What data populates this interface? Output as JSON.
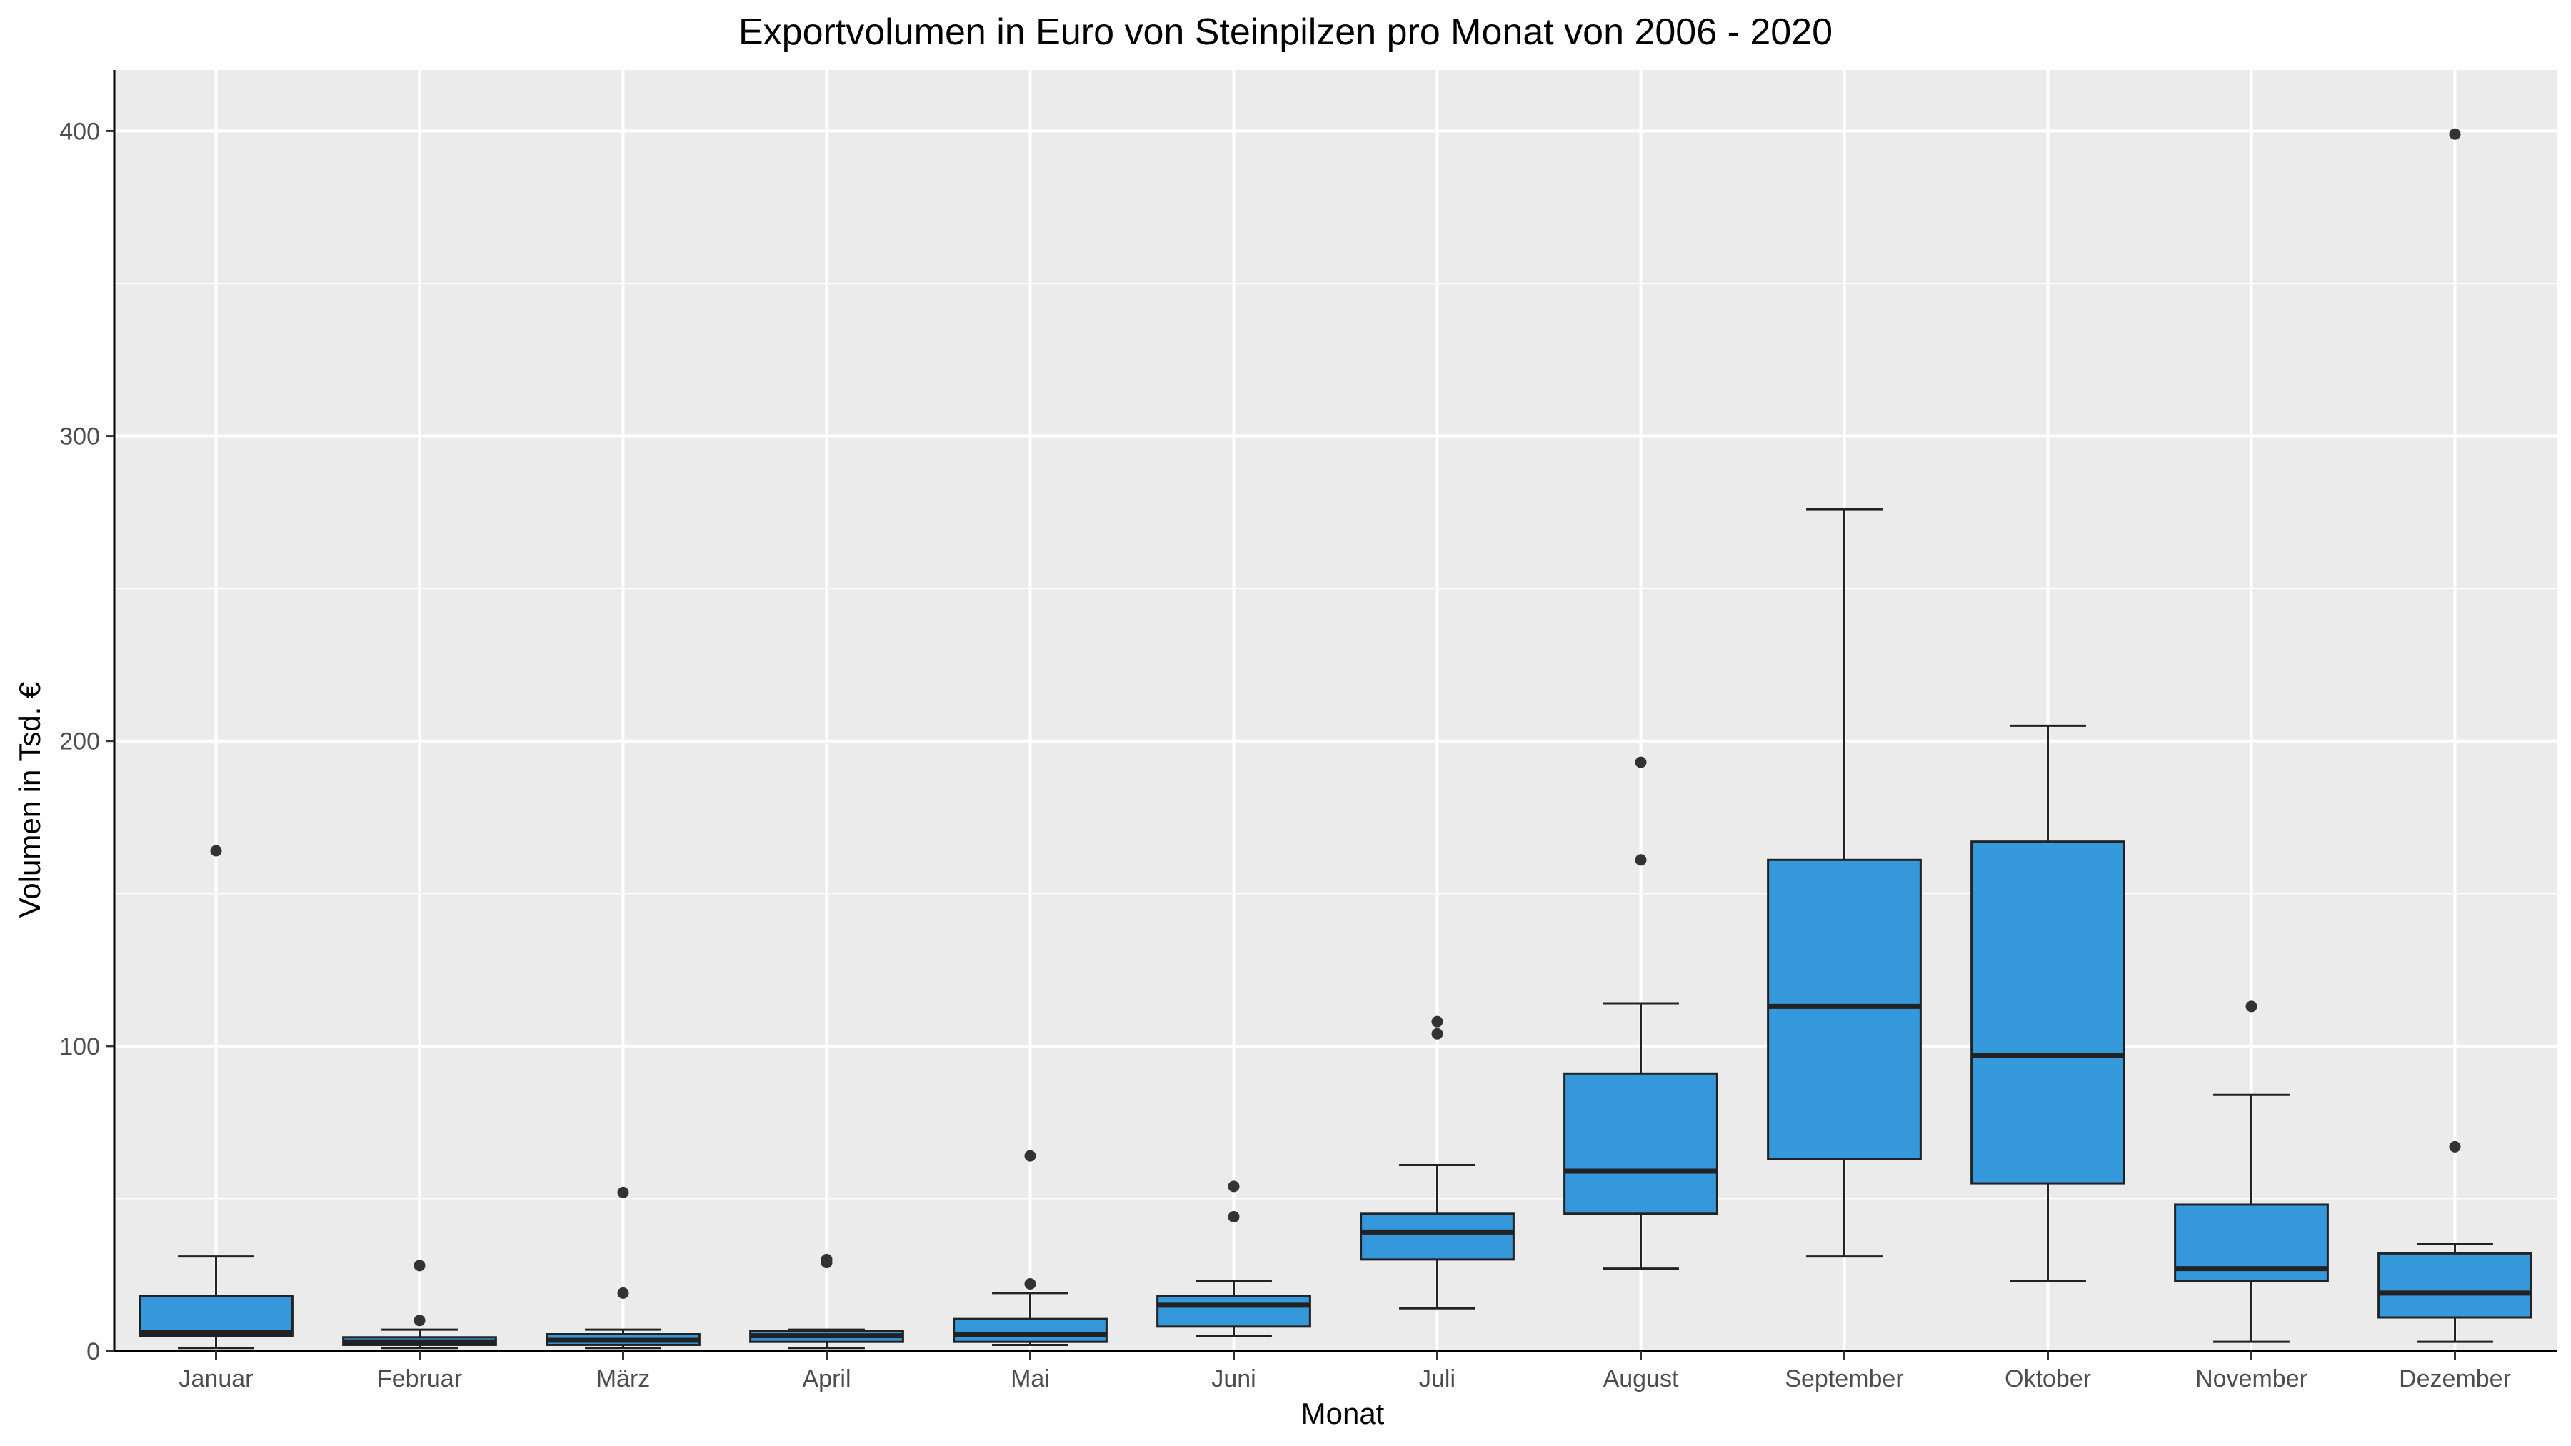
{
  "chart_data": {
    "type": "boxplot",
    "title": "Exportvolumen in Euro von Steinpilzen pro Monat von 2006 - 2020",
    "xlabel": "Monat",
    "ylabel": "Volumen in Tsd. €",
    "ylim": [
      0,
      420
    ],
    "yticks": [
      0,
      100,
      200,
      300,
      400
    ],
    "yticks_labels": [
      "0",
      "100",
      "200",
      "300",
      "400"
    ],
    "grid": true,
    "legend": "none",
    "colors": {
      "box_fill": "#3498DB",
      "box_stroke": "#222222",
      "panel_bg": "#EBEBEB",
      "grid_major": "#FFFFFF",
      "outlier": "#333333"
    },
    "categories": [
      "Januar",
      "Februar",
      "März",
      "April",
      "Mai",
      "Juni",
      "Juli",
      "August",
      "September",
      "Oktober",
      "November",
      "Dezember"
    ],
    "boxes": [
      {
        "category": "Januar",
        "whisker_low": 1,
        "q1": 5,
        "median": 6,
        "q3": 18,
        "whisker_high": 31,
        "outliers": [
          164
        ]
      },
      {
        "category": "Februar",
        "whisker_low": 1,
        "q1": 2,
        "median": 3,
        "q3": 4.5,
        "whisker_high": 7,
        "outliers": [
          10,
          28
        ]
      },
      {
        "category": "März",
        "whisker_low": 1,
        "q1": 2,
        "median": 3.5,
        "q3": 5.5,
        "whisker_high": 7,
        "outliers": [
          19,
          52
        ]
      },
      {
        "category": "April",
        "whisker_low": 1,
        "q1": 3,
        "median": 5,
        "q3": 6.5,
        "whisker_high": 7,
        "outliers": [
          29,
          30
        ]
      },
      {
        "category": "Mai",
        "whisker_low": 2,
        "q1": 3,
        "median": 5.5,
        "q3": 10.5,
        "whisker_high": 19,
        "outliers": [
          22,
          64
        ]
      },
      {
        "category": "Juni",
        "whisker_low": 5,
        "q1": 8,
        "median": 15,
        "q3": 18,
        "whisker_high": 23,
        "outliers": [
          44,
          54
        ]
      },
      {
        "category": "Juli",
        "whisker_low": 14,
        "q1": 30,
        "median": 39,
        "q3": 45,
        "whisker_high": 61,
        "outliers": [
          104,
          108
        ]
      },
      {
        "category": "August",
        "whisker_low": 27,
        "q1": 45,
        "median": 59,
        "q3": 91,
        "whisker_high": 114,
        "outliers": [
          161,
          193
        ]
      },
      {
        "category": "September",
        "whisker_low": 31,
        "q1": 63,
        "median": 113,
        "q3": 161,
        "whisker_high": 276,
        "outliers": []
      },
      {
        "category": "Oktober",
        "whisker_low": 23,
        "q1": 55,
        "median": 97,
        "q3": 167,
        "whisker_high": 205,
        "outliers": []
      },
      {
        "category": "November",
        "whisker_low": 3,
        "q1": 23,
        "median": 27,
        "q3": 48,
        "whisker_high": 84,
        "outliers": [
          113
        ]
      },
      {
        "category": "Dezember",
        "whisker_low": 3,
        "q1": 11,
        "median": 19,
        "q3": 32,
        "whisker_high": 35,
        "outliers": [
          67,
          399
        ]
      }
    ]
  }
}
